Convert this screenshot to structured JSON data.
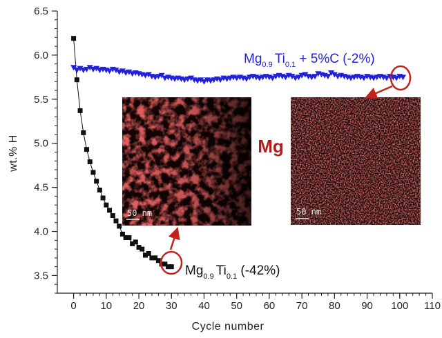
{
  "chart_data": {
    "type": "scatter",
    "xlabel": "Cycle number",
    "ylabel": "wt.% H",
    "xlim": [
      -5,
      110
    ],
    "ylim": [
      3.3,
      6.5
    ],
    "xticks": [
      0,
      10,
      20,
      30,
      40,
      50,
      60,
      70,
      80,
      90,
      100,
      110
    ],
    "yticks": [
      3.5,
      4.0,
      4.5,
      5.0,
      5.5,
      6.0,
      6.5
    ],
    "x_minor_step": 2,
    "y_minor_step": 0.1,
    "grid": false,
    "series": [
      {
        "name": "Mg0.9Ti0.1",
        "label_main": "Mg",
        "label_sub1": "0.9",
        "label_mid": "Ti",
        "label_sub2": "0.1",
        "label_suffix": " (-42%)",
        "marker": "square",
        "color": "#111111",
        "connected": true,
        "x": [
          0,
          1,
          2,
          3,
          4,
          5,
          6,
          7,
          8,
          9,
          10,
          11,
          12,
          13,
          14,
          15,
          16,
          17,
          18,
          19,
          20,
          21,
          22,
          23,
          24,
          25,
          26,
          27,
          28,
          29,
          30
        ],
        "y": [
          6.19,
          5.72,
          5.37,
          5.12,
          4.93,
          4.79,
          4.67,
          4.57,
          4.47,
          4.38,
          4.3,
          4.24,
          4.18,
          4.12,
          4.06,
          3.97,
          3.93,
          3.93,
          3.86,
          3.88,
          3.82,
          3.8,
          3.73,
          3.75,
          3.7,
          3.7,
          3.67,
          3.63,
          3.63,
          3.6,
          3.6
        ]
      },
      {
        "name": "Mg0.9Ti0.1 + 5%C",
        "label_main": "Mg",
        "label_sub1": "0.9",
        "label_mid": "Ti",
        "label_sub2": "0.1",
        "label_suffix": " + 5%C (-2%)",
        "marker": "triangle-down",
        "color": "#2222dd",
        "connected": true,
        "x": [
          0,
          1,
          2,
          3,
          4,
          5,
          6,
          7,
          8,
          9,
          10,
          11,
          12,
          13,
          14,
          15,
          16,
          17,
          18,
          19,
          20,
          21,
          22,
          23,
          24,
          25,
          26,
          27,
          28,
          29,
          30,
          31,
          32,
          33,
          34,
          35,
          36,
          37,
          38,
          39,
          40,
          41,
          42,
          43,
          44,
          45,
          46,
          47,
          48,
          49,
          50,
          51,
          52,
          53,
          54,
          55,
          56,
          57,
          58,
          59,
          60,
          61,
          62,
          63,
          64,
          65,
          66,
          67,
          68,
          69,
          70,
          71,
          72,
          73,
          74,
          75,
          76,
          77,
          78,
          79,
          80,
          81,
          82,
          83,
          84,
          85,
          86,
          87,
          88,
          89,
          90,
          91,
          92,
          93,
          94,
          95,
          96,
          97,
          98,
          99,
          100,
          101
        ],
        "y": [
          5.86,
          5.83,
          5.85,
          5.83,
          5.84,
          5.86,
          5.84,
          5.85,
          5.83,
          5.84,
          5.83,
          5.82,
          5.84,
          5.83,
          5.81,
          5.82,
          5.8,
          5.81,
          5.79,
          5.8,
          5.79,
          5.78,
          5.77,
          5.78,
          5.76,
          5.75,
          5.76,
          5.77,
          5.74,
          5.75,
          5.74,
          5.73,
          5.74,
          5.73,
          5.72,
          5.73,
          5.74,
          5.72,
          5.71,
          5.72,
          5.7,
          5.72,
          5.71,
          5.72,
          5.73,
          5.72,
          5.74,
          5.73,
          5.74,
          5.75,
          5.74,
          5.75,
          5.74,
          5.73,
          5.75,
          5.76,
          5.75,
          5.74,
          5.75,
          5.76,
          5.75,
          5.74,
          5.76,
          5.77,
          5.76,
          5.75,
          5.77,
          5.76,
          5.74,
          5.75,
          5.77,
          5.78,
          5.76,
          5.75,
          5.76,
          5.79,
          5.78,
          5.77,
          5.76,
          5.8,
          5.78,
          5.76,
          5.77,
          5.76,
          5.75,
          5.74,
          5.75,
          5.76,
          5.75,
          5.74,
          5.76,
          5.75,
          5.74,
          5.75,
          5.76,
          5.75,
          5.74,
          5.76,
          5.75,
          5.74,
          5.76,
          5.75
        ]
      }
    ],
    "annotations": {
      "element_label": "Mg",
      "scalebar_left": "50 nm",
      "scalebar_right": "50 nm",
      "circle_color": "#c0221e",
      "image_tint": "#b41e1e"
    }
  }
}
